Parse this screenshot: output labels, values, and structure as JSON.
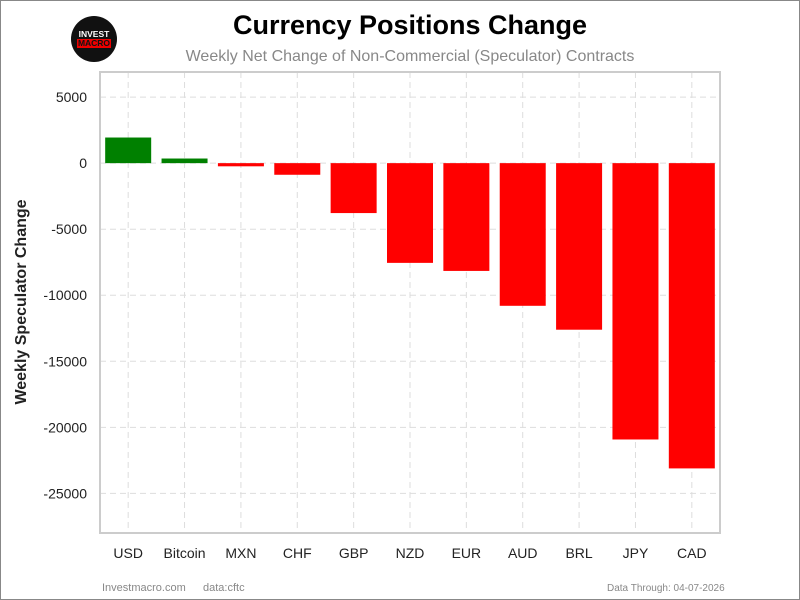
{
  "header": {
    "title": "Currency Positions Change",
    "subtitle": "Weekly Net Change of Non-Commercial (Speculator) Contracts",
    "logo_text": [
      "INVEST",
      "MACRO"
    ]
  },
  "footer": {
    "site": "Investmacro.com",
    "source": "data:cftc",
    "data_through": "Data Through: 04-07-2026"
  },
  "colors": {
    "positive": "#008000",
    "negative": "#ff0000",
    "grid": "#dddddd"
  },
  "chart_data": {
    "type": "bar",
    "title": "Currency Positions Change",
    "subtitle": "Weekly Net Change of Non-Commercial (Speculator) Contracts",
    "xlabel": "",
    "ylabel": "Weekly Speculator Change",
    "categories": [
      "USD",
      "Bitcoin",
      "MXN",
      "CHF",
      "GBP",
      "NZD",
      "EUR",
      "AUD",
      "BRL",
      "JPY",
      "CAD"
    ],
    "values": [
      1940,
      350,
      -240,
      -880,
      -3780,
      -7550,
      -8160,
      -10800,
      -12610,
      -20920,
      -23110
    ],
    "ylim": [
      -28000,
      6900
    ],
    "yticks": [
      5000,
      0,
      -5000,
      -10000,
      -15000,
      -20000,
      -25000
    ],
    "grid": true,
    "legend": "none"
  }
}
